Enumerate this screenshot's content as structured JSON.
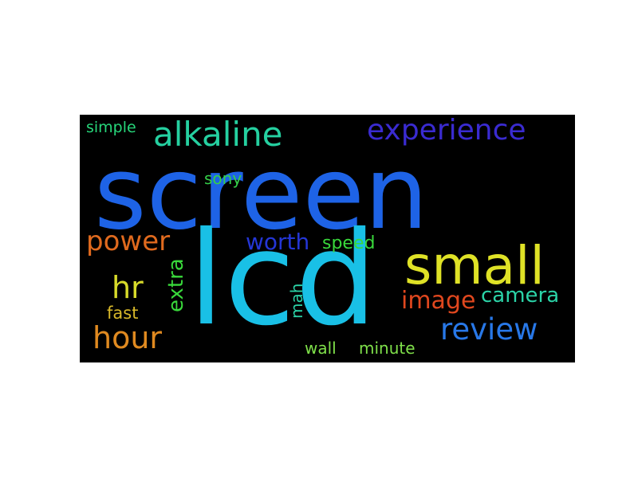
{
  "words": [
    {
      "id": "screen",
      "text": "screen",
      "color": "#1e63e6",
      "orientation": "horizontal"
    },
    {
      "id": "lcd",
      "text": "lcd",
      "color": "#19c0e6",
      "orientation": "horizontal"
    },
    {
      "id": "alkaline",
      "text": "alkaline",
      "color": "#25d0a0",
      "orientation": "horizontal"
    },
    {
      "id": "experience",
      "text": "experience",
      "color": "#3a2bd1",
      "orientation": "horizontal"
    },
    {
      "id": "simple",
      "text": "simple",
      "color": "#27d67a",
      "orientation": "horizontal"
    },
    {
      "id": "sony",
      "text": "sony",
      "color": "#35d04a",
      "orientation": "horizontal"
    },
    {
      "id": "small",
      "text": "small",
      "color": "#dfe226",
      "orientation": "horizontal"
    },
    {
      "id": "power",
      "text": "power",
      "color": "#e06a1e",
      "orientation": "horizontal"
    },
    {
      "id": "worth",
      "text": "worth",
      "color": "#2436d6",
      "orientation": "horizontal"
    },
    {
      "id": "speed",
      "text": "speed",
      "color": "#39d83b",
      "orientation": "horizontal"
    },
    {
      "id": "hr",
      "text": "hr",
      "color": "#d8db2a",
      "orientation": "horizontal"
    },
    {
      "id": "extra",
      "text": "extra",
      "color": "#39d83b",
      "orientation": "vertical"
    },
    {
      "id": "image",
      "text": "image",
      "color": "#e0471e",
      "orientation": "horizontal"
    },
    {
      "id": "camera",
      "text": "camera",
      "color": "#2bd3a7",
      "orientation": "horizontal"
    },
    {
      "id": "mah",
      "text": "mah",
      "color": "#2bd3a7",
      "orientation": "vertical"
    },
    {
      "id": "fast",
      "text": "fast",
      "color": "#d8b82a",
      "orientation": "horizontal"
    },
    {
      "id": "review",
      "text": "review",
      "color": "#2878e8",
      "orientation": "horizontal"
    },
    {
      "id": "hour",
      "text": "hour",
      "color": "#e08a20",
      "orientation": "horizontal"
    },
    {
      "id": "wall",
      "text": "wall",
      "color": "#7fe04a",
      "orientation": "horizontal"
    },
    {
      "id": "minute",
      "text": "minute",
      "color": "#7fe04a",
      "orientation": "horizontal"
    }
  ]
}
